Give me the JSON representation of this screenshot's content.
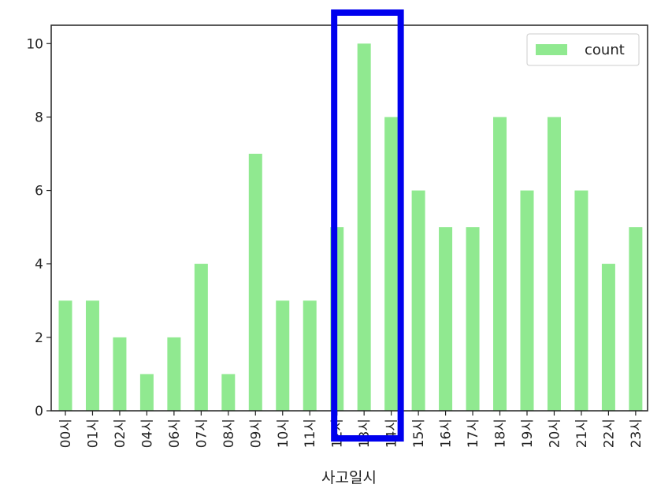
{
  "chart_data": {
    "type": "bar",
    "categories": [
      "00시",
      "01시",
      "02시",
      "04시",
      "06시",
      "07시",
      "08시",
      "09시",
      "10시",
      "11시",
      "12시",
      "13시",
      "14시",
      "15시",
      "16시",
      "17시",
      "18시",
      "19시",
      "20시",
      "21시",
      "22시",
      "23시"
    ],
    "series": [
      {
        "name": "count",
        "values": [
          3,
          3,
          2,
          1,
          2,
          4,
          1,
          7,
          3,
          3,
          5,
          10,
          8,
          6,
          5,
          5,
          8,
          6,
          8,
          6,
          4,
          5
        ]
      }
    ],
    "title": "",
    "xlabel": "사고일시",
    "ylabel": "",
    "ylim": [
      0,
      10.5
    ],
    "yticks": [
      0,
      2,
      4,
      6,
      8,
      10
    ],
    "grid": false,
    "legend_position": "top-right",
    "bar_color": "#90e990",
    "highlight": {
      "categories": [
        "13시",
        "14시"
      ],
      "color": "#0000ee"
    }
  }
}
